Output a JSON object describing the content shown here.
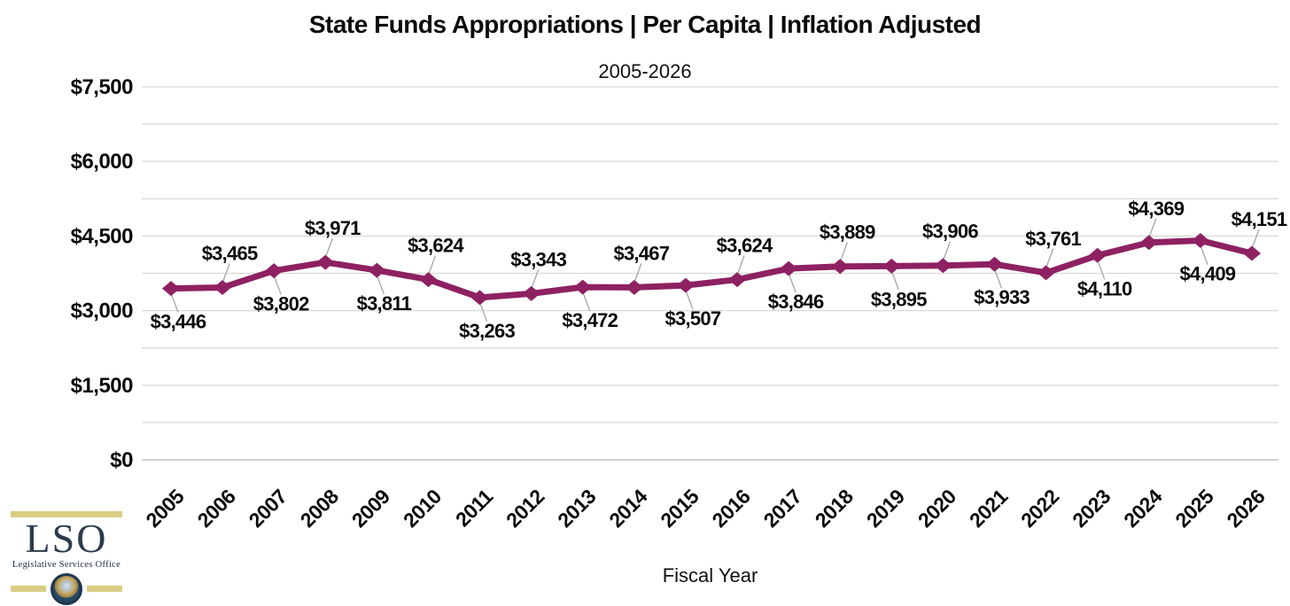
{
  "chart_data": {
    "type": "line",
    "title": "State Funds Appropriations | Per Capita | Inflation Adjusted",
    "subtitle": "2005-2026",
    "xlabel": "Fiscal Year",
    "ylabel": "",
    "x": [
      "2005",
      "2006",
      "2007",
      "2008",
      "2009",
      "2010",
      "2011",
      "2012",
      "2013",
      "2014",
      "2015",
      "2016",
      "2017",
      "2018",
      "2019",
      "2020",
      "2021",
      "2022",
      "2023",
      "2024",
      "2025",
      "2026"
    ],
    "values": [
      3446,
      3465,
      3802,
      3971,
      3811,
      3624,
      3263,
      3343,
      3472,
      3467,
      3507,
      3624,
      3846,
      3889,
      3895,
      3906,
      3933,
      3761,
      4110,
      4369,
      4409,
      4151
    ],
    "point_labels": [
      "$3,446",
      "$3,465",
      "$3,802",
      "$3,971",
      "$3,811",
      "$3,624",
      "$3,263",
      "$3,343",
      "$3,472",
      "$3,467",
      "$3,507",
      "$3,624",
      "$3,846",
      "$3,889",
      "$3,895",
      "$3,906",
      "$3,933",
      "$3,761",
      "$4,110",
      "$4,369",
      "$4,409",
      "$4,151"
    ],
    "label_side": [
      "below",
      "above",
      "below",
      "above",
      "below",
      "above",
      "below",
      "above",
      "below",
      "above",
      "below",
      "above",
      "below",
      "above",
      "below",
      "above",
      "below",
      "above",
      "below",
      "above",
      "below",
      "above"
    ],
    "ylim": [
      0,
      7500
    ],
    "yticks": [
      {
        "value": 7500,
        "label": "$7,500"
      },
      {
        "value": 6000,
        "label": "$6,000"
      },
      {
        "value": 4500,
        "label": "$4,500"
      },
      {
        "value": 3000,
        "label": "$3,000"
      },
      {
        "value": 1500,
        "label": "$1,500"
      },
      {
        "value": 0,
        "label": "$0"
      }
    ],
    "grid_interval": 750,
    "grid": true,
    "legend_position": "none",
    "marker": "diamond"
  },
  "colors": {
    "line": "#8e2162",
    "marker": "#8e2162",
    "grid": "#d9d9d9",
    "baseline": "#c3c3c3",
    "leader": "#a5a5a5",
    "text": "#0b0b0b",
    "logo_navy": "#2b3b4c",
    "logo_gold": "#d9cd84"
  },
  "logo": {
    "acronym": "LSO",
    "caption": "Legislative Services Office"
  }
}
